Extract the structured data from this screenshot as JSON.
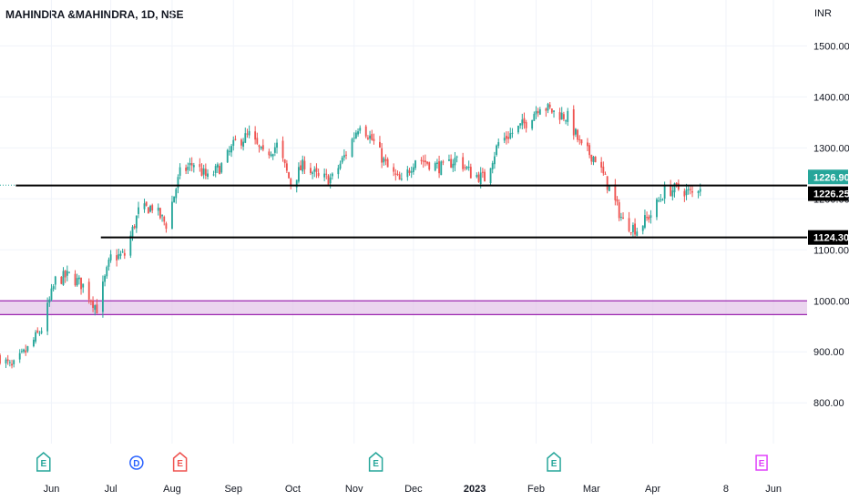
{
  "header": {
    "title": "MAHINDRA &MAHINDRA, 1D, NSE",
    "currency": "INR"
  },
  "colors": {
    "up": "#26a69a",
    "down": "#ef5350",
    "line": "#000000",
    "zone_fill": "#e1bee7",
    "zone_border": "#9c27b0",
    "grid": "#f0f3fa",
    "last_price_bg": "#26a69a",
    "level_bg": "#000000",
    "event_earnings_green": "#26a69a",
    "event_earnings_red": "#ef5350",
    "event_dividend": "#2962ff",
    "event_future": "#e040fb"
  },
  "chart_data": {
    "type": "candlestick",
    "title": "MAHINDRA &MAHINDRA, 1D, NSE",
    "ylabel": "INR",
    "ylim": [
      720,
      1590
    ],
    "y_ticks": [
      "1500.00",
      "1400.00",
      "1300.00",
      "1200.00",
      "1100.00",
      "1000.00",
      "900.00",
      "800.00"
    ],
    "x_ticks": [
      {
        "label": "Jun",
        "date": "2022-06-01",
        "bold": false
      },
      {
        "label": "Jul",
        "date": "2022-07-01",
        "bold": false
      },
      {
        "label": "Aug",
        "date": "2022-08-01",
        "bold": false
      },
      {
        "label": "Sep",
        "date": "2022-09-01",
        "bold": false
      },
      {
        "label": "Oct",
        "date": "2022-10-01",
        "bold": false
      },
      {
        "label": "Nov",
        "date": "2022-11-01",
        "bold": false
      },
      {
        "label": "Dec",
        "date": "2022-12-01",
        "bold": false
      },
      {
        "label": "2023",
        "date": "2023-01-01",
        "bold": true
      },
      {
        "label": "Feb",
        "date": "2023-02-01",
        "bold": false
      },
      {
        "label": "Mar",
        "date": "2023-03-01",
        "bold": false
      },
      {
        "label": "Apr",
        "date": "2023-04-01",
        "bold": false
      },
      {
        "label": "8",
        "date": "2023-05-08",
        "bold": false
      },
      {
        "label": "Jun",
        "date": "2023-06-01",
        "bold": false
      }
    ],
    "x_range": [
      "2022-05-06",
      "2023-06-18"
    ],
    "price_path": [
      [
        "2022-05-06",
        890
      ],
      [
        "2022-05-12",
        868
      ],
      [
        "2022-05-20",
        905
      ],
      [
        "2022-05-27",
        945
      ],
      [
        "2022-06-03",
        1040
      ],
      [
        "2022-06-10",
        1050
      ],
      [
        "2022-06-17",
        1030
      ],
      [
        "2022-06-24",
        985
      ],
      [
        "2022-07-01",
        1085
      ],
      [
        "2022-07-08",
        1090
      ],
      [
        "2022-07-15",
        1175
      ],
      [
        "2022-07-22",
        1185
      ],
      [
        "2022-07-29",
        1150
      ],
      [
        "2022-08-05",
        1250
      ],
      [
        "2022-08-12",
        1270
      ],
      [
        "2022-08-19",
        1240
      ],
      [
        "2022-08-26",
        1265
      ],
      [
        "2022-09-02",
        1310
      ],
      [
        "2022-09-09",
        1325
      ],
      [
        "2022-09-16",
        1285
      ],
      [
        "2022-09-23",
        1305
      ],
      [
        "2022-09-30",
        1230
      ],
      [
        "2022-10-07",
        1270
      ],
      [
        "2022-10-14",
        1240
      ],
      [
        "2022-10-21",
        1240
      ],
      [
        "2022-10-28",
        1290
      ],
      [
        "2022-11-04",
        1350
      ],
      [
        "2022-11-11",
        1310
      ],
      [
        "2022-11-18",
        1260
      ],
      [
        "2022-11-25",
        1230
      ],
      [
        "2022-12-02",
        1280
      ],
      [
        "2022-12-09",
        1270
      ],
      [
        "2022-12-16",
        1260
      ],
      [
        "2022-12-23",
        1280
      ],
      [
        "2022-12-30",
        1250
      ],
      [
        "2023-01-06",
        1240
      ],
      [
        "2023-01-13",
        1310
      ],
      [
        "2023-01-20",
        1330
      ],
      [
        "2023-01-27",
        1350
      ],
      [
        "2023-02-03",
        1385
      ],
      [
        "2023-02-10",
        1370
      ],
      [
        "2023-02-17",
        1360
      ],
      [
        "2023-02-24",
        1300
      ],
      [
        "2023-03-03",
        1280
      ],
      [
        "2023-03-10",
        1220
      ],
      [
        "2023-03-17",
        1155
      ],
      [
        "2023-03-24",
        1140
      ],
      [
        "2023-03-31",
        1170
      ],
      [
        "2023-04-07",
        1215
      ],
      [
        "2023-04-14",
        1220
      ],
      [
        "2023-04-21",
        1210
      ],
      [
        "2023-04-25",
        1226.9
      ]
    ],
    "horizontal_levels": [
      {
        "price": 1226.25,
        "from": "2022-05-14",
        "label": "1226.25"
      },
      {
        "price": 1124.3,
        "from": "2022-06-26",
        "label": "1124.30"
      }
    ],
    "last_price": {
      "price": 1226.9,
      "label": "1226.90"
    },
    "zone": {
      "low": 973,
      "high": 1000
    },
    "events": [
      {
        "type": "earnings",
        "label": "E",
        "date": "2022-05-28",
        "style": "green"
      },
      {
        "type": "dividend",
        "label": "D",
        "date": "2022-07-14",
        "style": "blue"
      },
      {
        "type": "earnings",
        "label": "E",
        "date": "2022-08-05",
        "style": "red"
      },
      {
        "type": "earnings",
        "label": "E",
        "date": "2022-11-12",
        "style": "green"
      },
      {
        "type": "earnings",
        "label": "E",
        "date": "2023-02-10",
        "style": "green"
      },
      {
        "type": "earnings",
        "label": "E",
        "date": "2023-05-26",
        "style": "future"
      }
    ]
  }
}
